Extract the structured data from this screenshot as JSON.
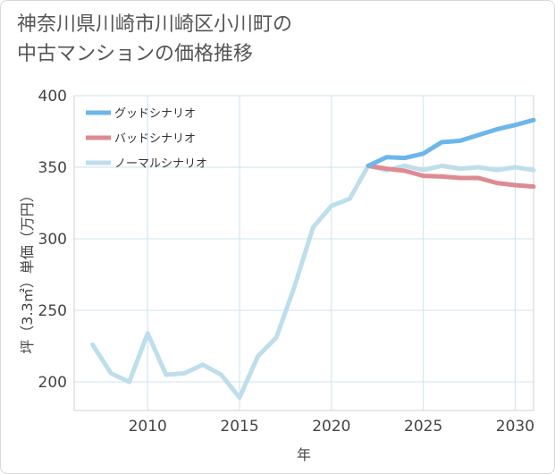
{
  "chart_data": {
    "type": "line",
    "title_lines": [
      "神奈川県川崎市川崎区小川町の",
      "中古マンションの価格推移"
    ],
    "xlabel": "年",
    "ylabel": "坪（3.3㎡）単価（万円）",
    "xlim": [
      2006,
      2031
    ],
    "ylim": [
      180,
      400
    ],
    "x_ticks": [
      2010,
      2015,
      2020,
      2025,
      2030
    ],
    "y_ticks": [
      200,
      250,
      300,
      350,
      400
    ],
    "grid": true,
    "legend_position": "top-left",
    "series": [
      {
        "name": "グッドシナリオ",
        "color": "#6cb6ea",
        "x": [
          2022,
          2023,
          2024,
          2025,
          2026,
          2027,
          2028,
          2029,
          2030,
          2031
        ],
        "y": [
          351,
          357,
          356.5,
          359.5,
          367.5,
          368.5,
          372.5,
          376.5,
          379.5,
          383
        ]
      },
      {
        "name": "バッドシナリオ",
        "color": "#dd8b93",
        "x": [
          2022,
          2023,
          2024,
          2025,
          2026,
          2027,
          2028,
          2029,
          2030,
          2031
        ],
        "y": [
          351,
          349,
          347.5,
          344,
          343.5,
          342.5,
          342.5,
          339,
          337.5,
          336.5
        ]
      },
      {
        "name": "ノーマルシナリオ",
        "color": "#bedeec",
        "x": [
          2007,
          2008,
          2009,
          2010,
          2011,
          2012,
          2013,
          2014,
          2015,
          2016,
          2017,
          2018,
          2019,
          2020,
          2021,
          2022,
          2023,
          2024,
          2025,
          2026,
          2027,
          2028,
          2029,
          2030,
          2031
        ],
        "y": [
          226,
          206,
          200,
          234,
          205,
          206,
          212,
          205,
          189,
          218,
          231,
          267,
          308,
          323,
          328,
          351,
          348,
          351,
          348,
          351,
          349,
          350,
          348,
          350,
          348
        ]
      }
    ]
  }
}
